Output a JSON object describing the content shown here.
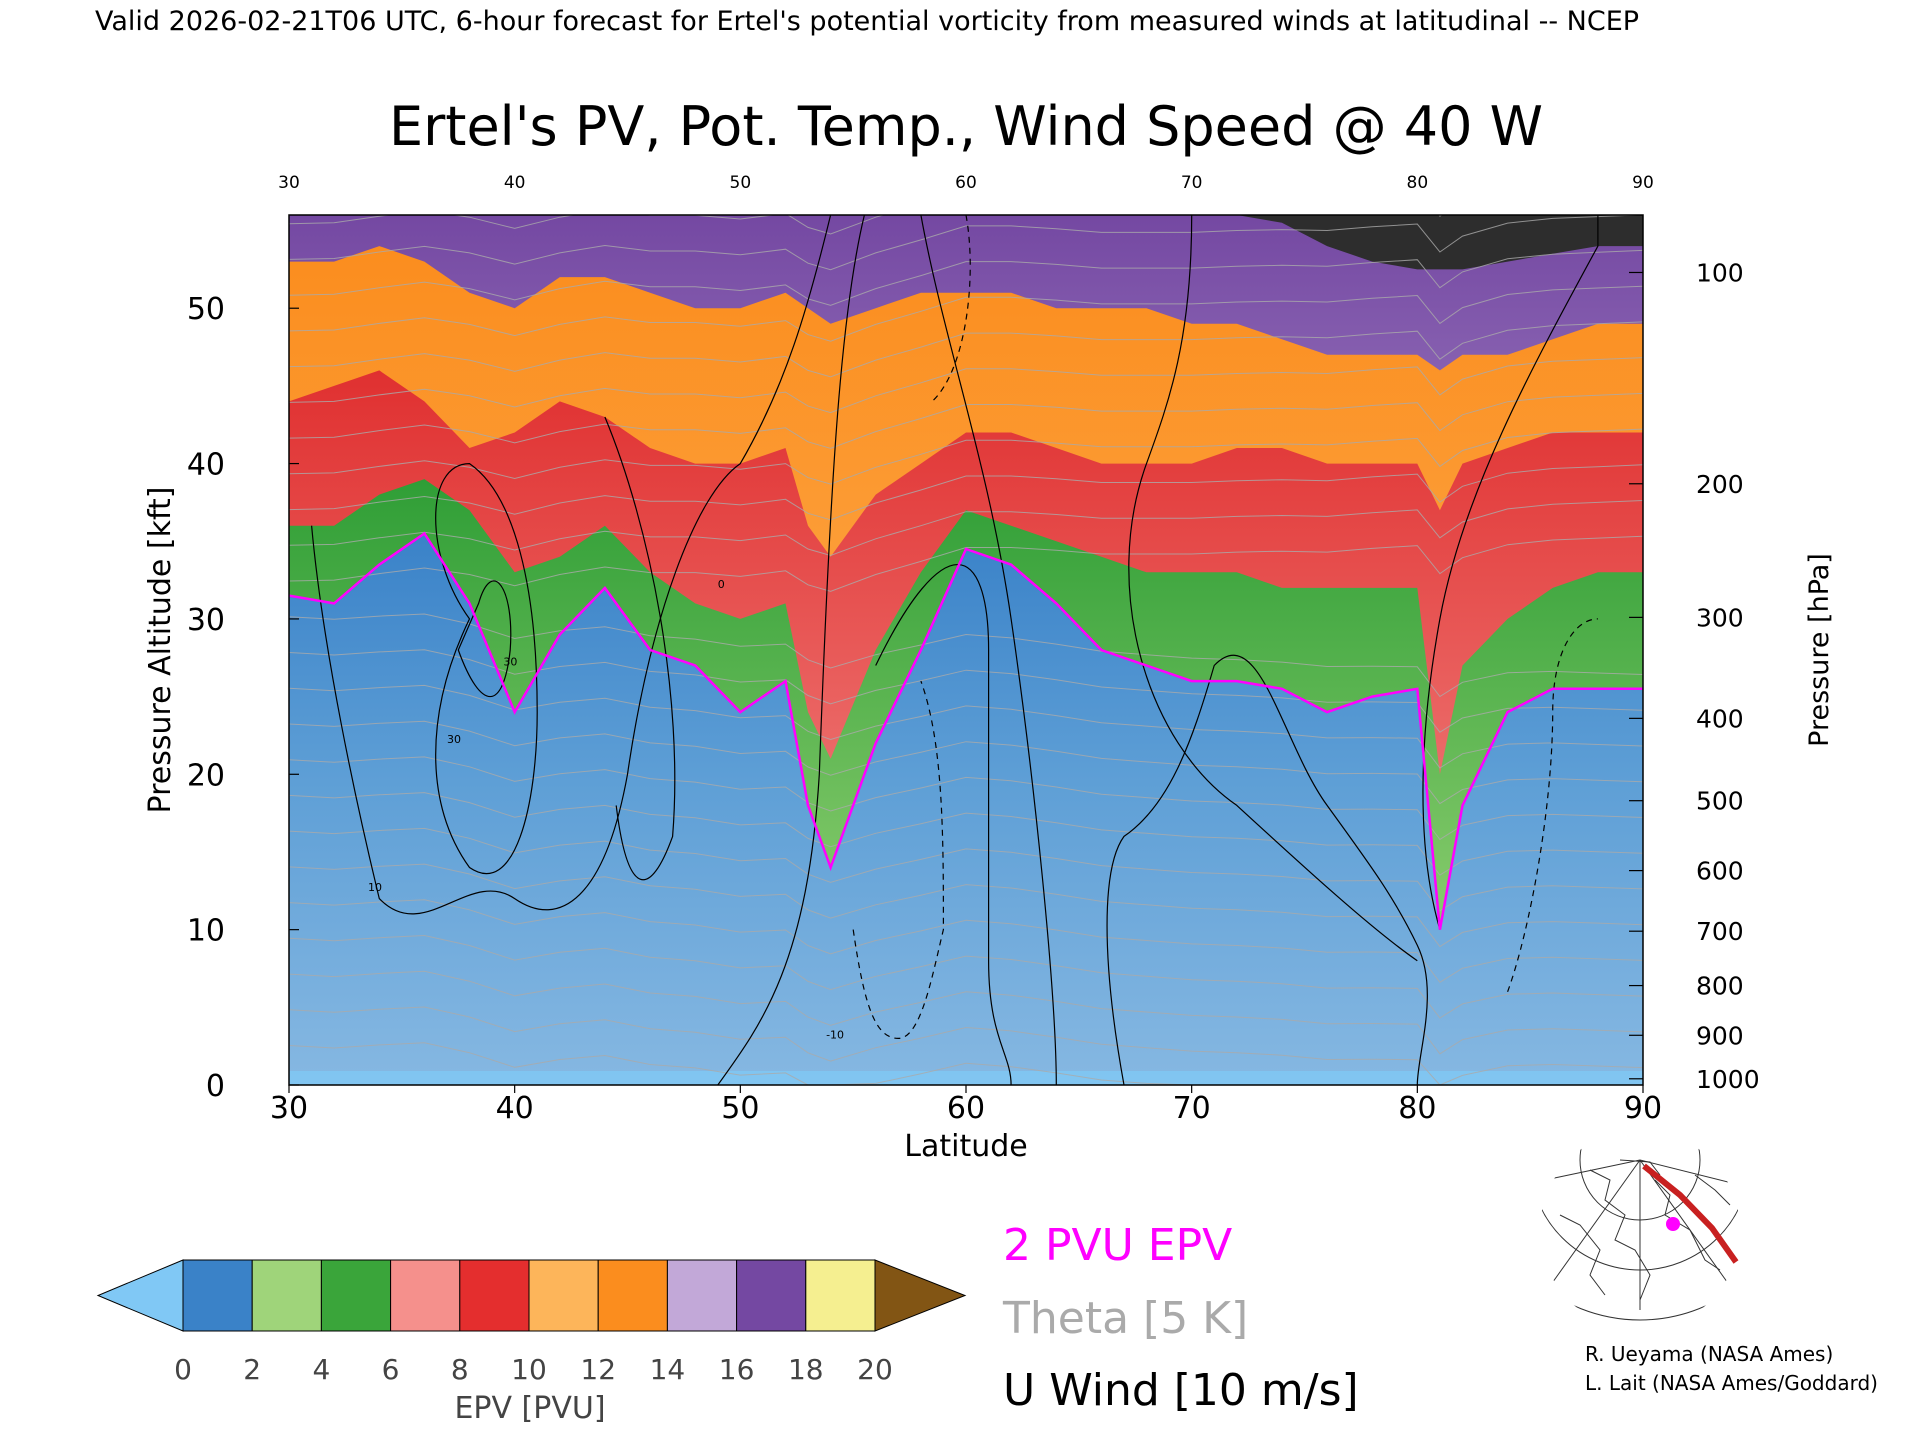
{
  "header": {
    "valid_line": "Valid 2026-02-21T06 UTC, 6-hour forecast for Ertel's potential vorticity from measured winds at latitudinal -- NCEP"
  },
  "chart_data": {
    "type": "heatmap",
    "title": "Ertel's PV, Pot. Temp., Wind Speed @ 40 W",
    "xlabel": "Latitude",
    "ylabel_left": "Pressure Altitude [kft]",
    "ylabel_right": "Pressure [hPa]",
    "xlim": [
      30,
      90
    ],
    "ylim": [
      0,
      56
    ],
    "x_ticks": [
      "30",
      "40",
      "50",
      "60",
      "70",
      "80",
      "90"
    ],
    "y_ticks_left": [
      "0",
      "10",
      "20",
      "30",
      "40",
      "50"
    ],
    "y_ticks_right": [
      {
        "label": "100",
        "kft": 52.3
      },
      {
        "label": "200",
        "kft": 38.7
      },
      {
        "label": "300",
        "kft": 30.1
      },
      {
        "label": "400",
        "kft": 23.6
      },
      {
        "label": "500",
        "kft": 18.3
      },
      {
        "label": "600",
        "kft": 13.8
      },
      {
        "label": "700",
        "kft": 9.9
      },
      {
        "label": "800",
        "kft": 6.4
      },
      {
        "label": "900",
        "kft": 3.2
      },
      {
        "label": "1000",
        "kft": 0.4
      }
    ],
    "epv_layer_tops_kft": {
      "latitudes": [
        30,
        32,
        34,
        36,
        38,
        40,
        42,
        44,
        46,
        48,
        50,
        52,
        53,
        54,
        56,
        58,
        60,
        62,
        64,
        66,
        68,
        70,
        72,
        74,
        76,
        78,
        80,
        81,
        82,
        84,
        86,
        88,
        90
      ],
      "tropopause_2pvu": [
        31.5,
        31.0,
        33.5,
        35.5,
        31.0,
        24.0,
        29.0,
        32.0,
        28.0,
        27.0,
        24.0,
        26.0,
        18.0,
        14.0,
        22.0,
        28.0,
        34.5,
        33.5,
        31.0,
        28.0,
        27.0,
        26.0,
        26.0,
        25.5,
        24.0,
        25.0,
        25.5,
        10.0,
        18.0,
        24.0,
        25.5,
        25.5,
        25.5
      ],
      "pv6": [
        36.0,
        36.0,
        38.0,
        39.0,
        37.0,
        33.0,
        34.0,
        36.0,
        33.0,
        31.0,
        30.0,
        31.0,
        24.0,
        21.0,
        28.0,
        33.0,
        37.0,
        36.0,
        35.0,
        34.0,
        33.0,
        33.0,
        33.0,
        32.0,
        32.0,
        32.0,
        32.0,
        20.0,
        27.0,
        30.0,
        32.0,
        33.0,
        33.0
      ],
      "pv10": [
        44.0,
        45.0,
        46.0,
        44.0,
        41.0,
        42.0,
        44.0,
        43.0,
        41.0,
        40.0,
        40.0,
        41.0,
        36.0,
        34.0,
        38.0,
        40.0,
        42.0,
        42.0,
        41.0,
        40.0,
        40.0,
        40.0,
        41.0,
        41.0,
        40.0,
        40.0,
        40.0,
        37.0,
        40.0,
        41.0,
        42.0,
        42.0,
        42.0
      ],
      "pv14": [
        53.0,
        53.0,
        54.0,
        53.0,
        51.0,
        50.0,
        52.0,
        52.0,
        51.0,
        50.0,
        50.0,
        51.0,
        50.0,
        49.0,
        50.0,
        51.0,
        51.0,
        51.0,
        50.0,
        50.0,
        50.0,
        49.0,
        49.0,
        48.0,
        47.0,
        47.0,
        47.0,
        46.0,
        47.0,
        47.0,
        48.0,
        49.0,
        49.0
      ],
      "pv20": [
        56.0,
        56.0,
        56.0,
        56.0,
        56.0,
        56.0,
        56.0,
        56.0,
        56.0,
        56.0,
        56.0,
        56.0,
        56.0,
        56.0,
        56.0,
        56.0,
        56.0,
        56.0,
        56.0,
        56.0,
        56.0,
        56.0,
        56.0,
        55.5,
        54.0,
        53.0,
        52.5,
        52.5,
        52.5,
        53.0,
        53.5,
        54.0,
        54.0
      ]
    },
    "u_wind_contours": {
      "units": "m/s",
      "interval": 10,
      "labels": [
        "10",
        "30",
        "0",
        "-10"
      ]
    },
    "legend_key": {
      "pv_line_label": "2 PVU EPV",
      "theta_label": "Theta [5 K]",
      "wind_label": "U Wind [10 m/s]",
      "pv_line_color": "#ff00ff",
      "theta_color": "#aaaaaa",
      "wind_color": "#000000"
    },
    "colorbar": {
      "label": "EPV [PVU]",
      "ticks": [
        "0",
        "2",
        "4",
        "6",
        "8",
        "10",
        "12",
        "14",
        "16",
        "18",
        "20"
      ],
      "colors": [
        "#3a82c8",
        "#9fd47a",
        "#3aa53a",
        "#f5908c",
        "#e42e2e",
        "#fdb55a",
        "#fb8d1e",
        "#c2a8d8",
        "#7448a2",
        "#f5ef90"
      ],
      "under_color": "#80c8f5",
      "over_color": "#825514"
    }
  },
  "credits": {
    "line1": "R. Ueyama (NASA Ames)",
    "line2": "L. Lait (NASA Ames/Goddard)"
  },
  "inset_map": {
    "icon": "polar-map-icon",
    "track_color": "#c82020",
    "marker_color": "#ff00ff"
  }
}
